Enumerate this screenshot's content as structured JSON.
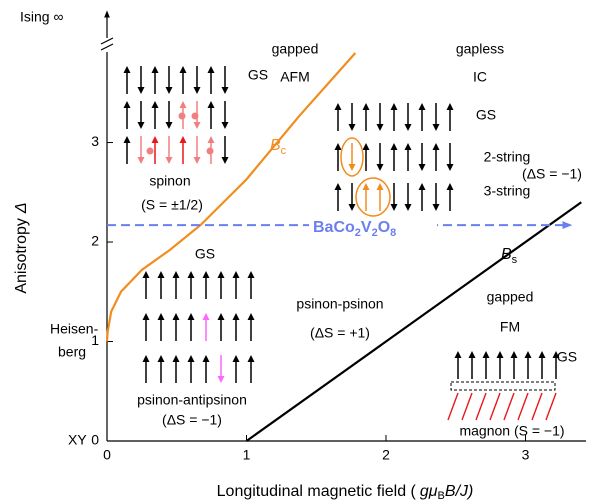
{
  "chart_data": {
    "type": "line",
    "x_label": [
      "Longitudinal magnetic field (",
      "gμ",
      "B",
      "B/J)"
    ],
    "y_label": [
      "Anisotropy",
      "Δ"
    ],
    "xlim": [
      0,
      3.4
    ],
    "ylim": [
      0,
      3.9
    ],
    "xticks": [
      0,
      1,
      2,
      3
    ],
    "yticks": [
      0,
      1,
      2,
      3
    ],
    "y_extra_labels": {
      "xy": "XY",
      "heisenberg": [
        "Heisen-",
        "berg"
      ],
      "ising": "Ising ∞"
    },
    "series": [
      {
        "label": [
          "B",
          "c"
        ],
        "color": "#f28c1e",
        "x": [
          0,
          0.005,
          0.03,
          0.1,
          0.25,
          0.45,
          0.67,
          1.0,
          1.38,
          1.78
        ],
        "values": [
          1,
          1.1,
          1.3,
          1.5,
          1.72,
          1.92,
          2.17,
          2.63,
          3.27,
          3.9
        ]
      },
      {
        "label": [
          "B",
          "s"
        ],
        "color": "#000000",
        "x": [
          1,
          3.4
        ],
        "values": [
          0,
          2.4
        ]
      },
      {
        "label": [
          "BaCo",
          "2",
          "V",
          "2",
          "O",
          "8"
        ],
        "color": "#6b7ff0",
        "dashed": true,
        "x": [
          0,
          3.3
        ],
        "values": [
          2.17,
          2.17
        ]
      }
    ],
    "annotations": {
      "afm": [
        "gapped",
        "AFM"
      ],
      "ic": [
        "gapless",
        "IC"
      ],
      "fm": [
        "gapped",
        "FM"
      ],
      "gs_afm": "GS",
      "gs_ic": "GS",
      "gs_low": "GS",
      "gs_fm": "GS",
      "spinon": [
        "spinon",
        "(S = ±1/2)"
      ],
      "two_string": "2-string",
      "three_string": "3-string",
      "string_ds": "(ΔS = −1)",
      "psinon_psinon": [
        "psinon-psinon",
        "(ΔS = +1)"
      ],
      "psinon_antipsinon": [
        "psinon-antipsinon",
        "(ΔS = −1)"
      ],
      "magnon": "magnon (S = −1)"
    }
  }
}
